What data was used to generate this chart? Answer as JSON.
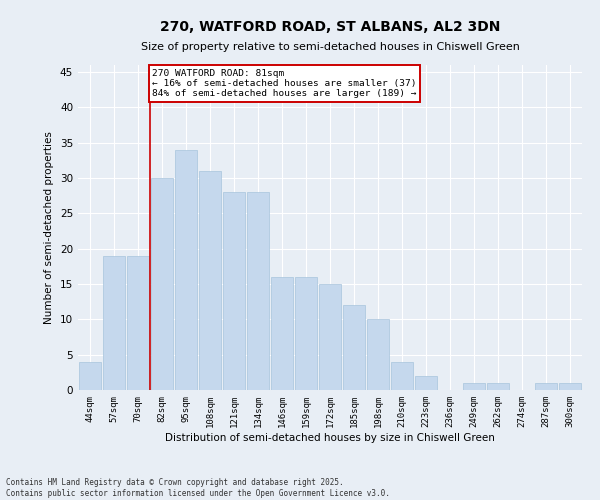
{
  "title_line1": "270, WATFORD ROAD, ST ALBANS, AL2 3DN",
  "title_line2": "Size of property relative to semi-detached houses in Chiswell Green",
  "xlabel": "Distribution of semi-detached houses by size in Chiswell Green",
  "ylabel": "Number of semi-detached properties",
  "footnote": "Contains HM Land Registry data © Crown copyright and database right 2025.\nContains public sector information licensed under the Open Government Licence v3.0.",
  "categories": [
    "44sqm",
    "57sqm",
    "70sqm",
    "82sqm",
    "95sqm",
    "108sqm",
    "121sqm",
    "134sqm",
    "146sqm",
    "159sqm",
    "172sqm",
    "185sqm",
    "198sqm",
    "210sqm",
    "223sqm",
    "236sqm",
    "249sqm",
    "262sqm",
    "274sqm",
    "287sqm",
    "300sqm"
  ],
  "values": [
    4,
    19,
    19,
    30,
    34,
    31,
    28,
    28,
    16,
    16,
    15,
    12,
    10,
    4,
    2,
    0,
    1,
    1,
    0,
    1,
    1
  ],
  "bar_color": "#c5d8ed",
  "bar_edge_color": "#a8c4dc",
  "background_color": "#e8eef5",
  "grid_color": "#ffffff",
  "annotation_text": "270 WATFORD ROAD: 81sqm\n← 16% of semi-detached houses are smaller (37)\n84% of semi-detached houses are larger (189) →",
  "annotation_box_color": "#ffffff",
  "annotation_box_edge": "#cc0000",
  "vline_x_index": 3,
  "vline_color": "#cc0000",
  "ylim": [
    0,
    46
  ],
  "yticks": [
    0,
    5,
    10,
    15,
    20,
    25,
    30,
    35,
    40,
    45
  ]
}
